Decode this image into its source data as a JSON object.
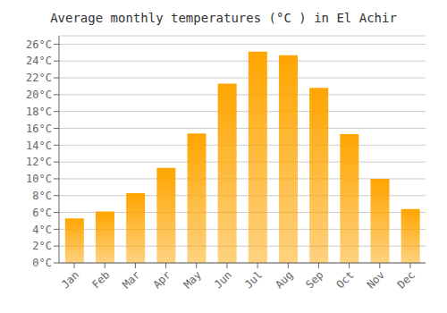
{
  "chart_data": {
    "type": "bar",
    "title": "Average monthly temperatures (°C ) in El Achir",
    "categories": [
      "Jan",
      "Feb",
      "Mar",
      "Apr",
      "May",
      "Jun",
      "Jul",
      "Aug",
      "Sep",
      "Oct",
      "Nov",
      "Dec"
    ],
    "values": [
      5.3,
      6.1,
      8.3,
      11.3,
      15.4,
      21.3,
      25.1,
      24.7,
      20.8,
      15.3,
      10.0,
      6.4
    ],
    "color": "#FFA500",
    "ylim": [
      0,
      27
    ],
    "yticks": [
      {
        "value": 0,
        "label": "0°C"
      },
      {
        "value": 2,
        "label": "2°C"
      },
      {
        "value": 4,
        "label": "4°C"
      },
      {
        "value": 6,
        "label": "6°C"
      },
      {
        "value": 8,
        "label": "8°C"
      },
      {
        "value": 10,
        "label": "10°C"
      },
      {
        "value": 12,
        "label": "12°C"
      },
      {
        "value": 14,
        "label": "14°C"
      },
      {
        "value": 16,
        "label": "16°C"
      },
      {
        "value": 18,
        "label": "18°C"
      },
      {
        "value": 20,
        "label": "20°C"
      },
      {
        "value": 22,
        "label": "22°C"
      },
      {
        "value": 24,
        "label": "24°C"
      },
      {
        "value": 26,
        "label": "26°C"
      }
    ],
    "grid": true
  }
}
